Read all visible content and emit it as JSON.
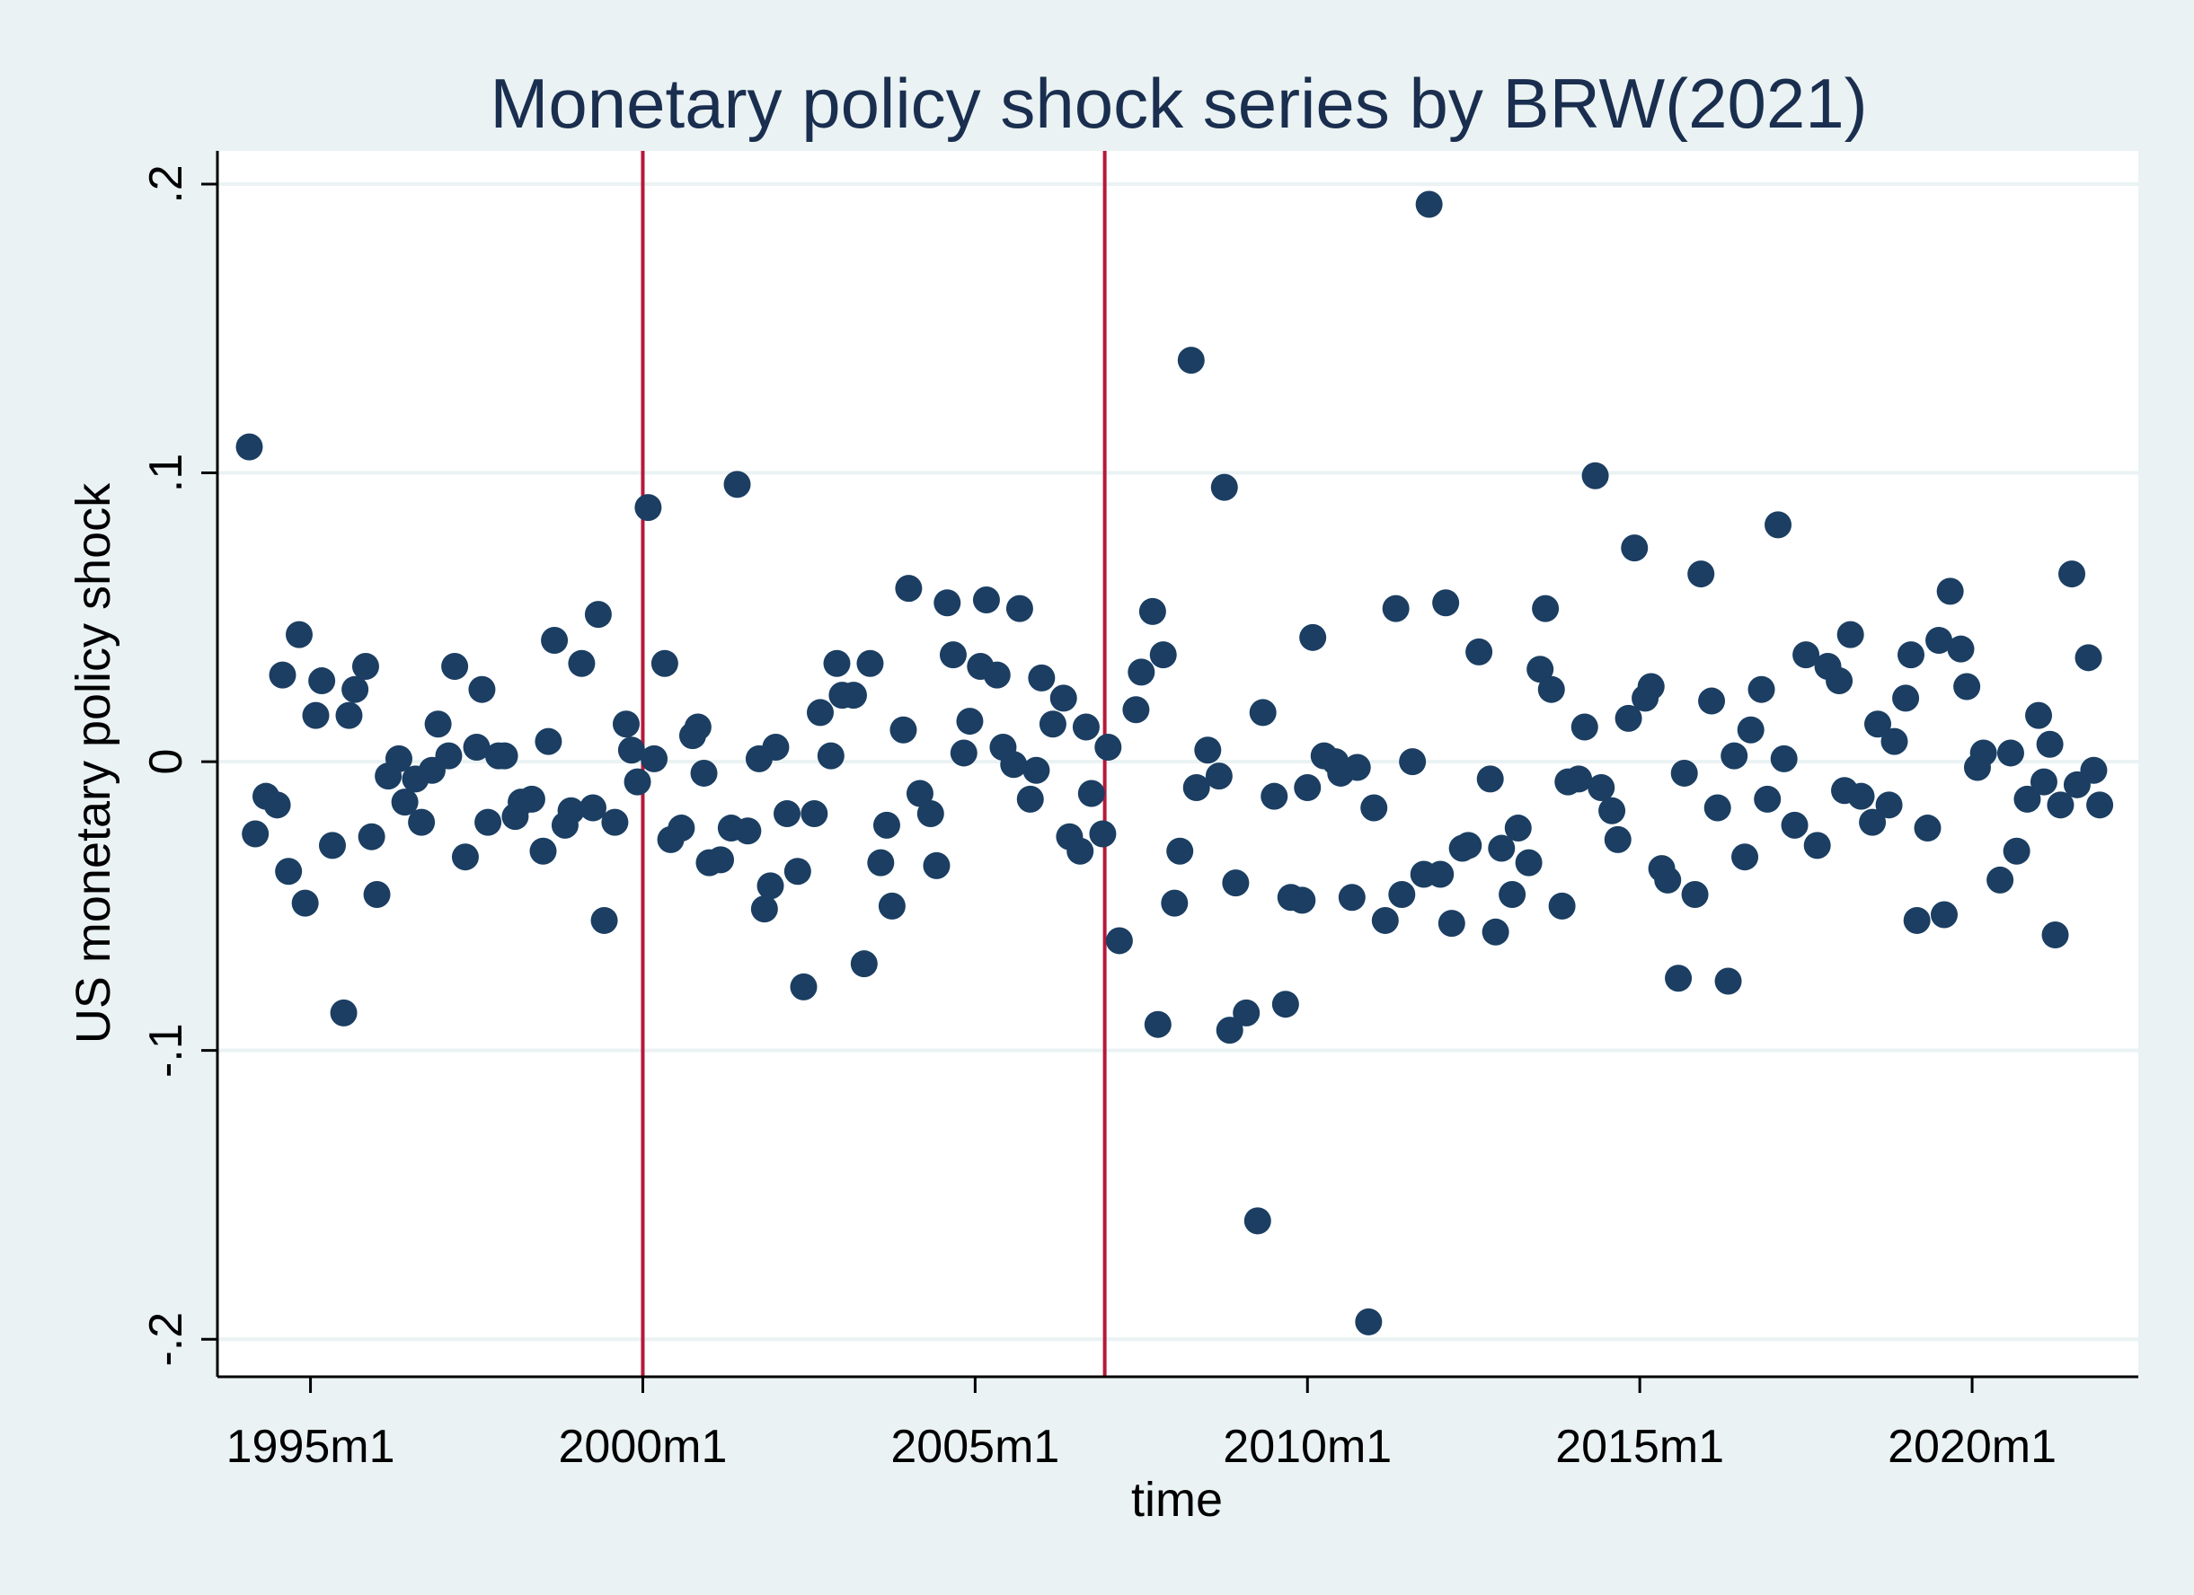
{
  "chart_data": {
    "type": "scatter",
    "title": "Monetary policy shock series by BRW(2021)",
    "xlabel": "time",
    "ylabel": "US monetary policy shock",
    "x_ticks": [
      {
        "value": 1995.0,
        "label": "1995m1"
      },
      {
        "value": 2000.0,
        "label": "2000m1"
      },
      {
        "value": 2005.0,
        "label": "2005m1"
      },
      {
        "value": 2010.0,
        "label": "2010m1"
      },
      {
        "value": 2015.0,
        "label": "2015m1"
      },
      {
        "value": 2020.0,
        "label": "2020m1"
      }
    ],
    "y_ticks": [
      {
        "value": 0.2,
        "label": ".2"
      },
      {
        "value": 0.1,
        "label": ".1"
      },
      {
        "value": 0.0,
        "label": "0"
      },
      {
        "value": -0.1,
        "label": "-.1"
      },
      {
        "value": -0.2,
        "label": "-.2"
      }
    ],
    "xlim": [
      1993.6,
      2022.5
    ],
    "ylim": [
      -0.213,
      0.2115
    ],
    "grid": "horizontal",
    "reference_lines_x": [
      2000.0,
      2006.95
    ],
    "colors": {
      "points": "#1b3e62",
      "reference_lines": "#b5193a",
      "title": "#1a2e4f",
      "background": "#eaf2f3",
      "plot_background": "#ffffff"
    },
    "points": [
      [
        1994.08,
        0.109
      ],
      [
        1994.17,
        -0.025
      ],
      [
        1994.33,
        -0.012
      ],
      [
        1994.5,
        -0.015
      ],
      [
        1994.58,
        0.03
      ],
      [
        1994.67,
        -0.038
      ],
      [
        1994.83,
        0.044
      ],
      [
        1994.92,
        -0.049
      ],
      [
        1995.08,
        0.016
      ],
      [
        1995.17,
        0.028
      ],
      [
        1995.33,
        -0.029
      ],
      [
        1995.5,
        -0.087
      ],
      [
        1995.58,
        0.016
      ],
      [
        1995.67,
        0.025
      ],
      [
        1995.83,
        0.033
      ],
      [
        1995.92,
        -0.026
      ],
      [
        1996.0,
        -0.046
      ],
      [
        1996.17,
        -0.005
      ],
      [
        1996.33,
        0.001
      ],
      [
        1996.42,
        -0.014
      ],
      [
        1996.58,
        -0.006
      ],
      [
        1996.67,
        -0.021
      ],
      [
        1996.83,
        -0.003
      ],
      [
        1996.92,
        0.013
      ],
      [
        1997.08,
        0.002
      ],
      [
        1997.17,
        0.033
      ],
      [
        1997.33,
        -0.033
      ],
      [
        1997.5,
        0.005
      ],
      [
        1997.58,
        0.025
      ],
      [
        1997.67,
        -0.021
      ],
      [
        1997.83,
        0.002
      ],
      [
        1997.92,
        0.002
      ],
      [
        1998.08,
        -0.019
      ],
      [
        1998.17,
        -0.014
      ],
      [
        1998.33,
        -0.013
      ],
      [
        1998.5,
        -0.031
      ],
      [
        1998.58,
        0.007
      ],
      [
        1998.67,
        0.042
      ],
      [
        1998.83,
        -0.022
      ],
      [
        1998.92,
        -0.017
      ],
      [
        1999.08,
        0.034
      ],
      [
        1999.25,
        -0.016
      ],
      [
        1999.33,
        0.051
      ],
      [
        1999.42,
        -0.055
      ],
      [
        1999.58,
        -0.021
      ],
      [
        1999.75,
        0.013
      ],
      [
        1999.83,
        0.004
      ],
      [
        1999.92,
        -0.007
      ],
      [
        2000.08,
        0.088
      ],
      [
        2000.17,
        0.001
      ],
      [
        2000.33,
        0.034
      ],
      [
        2000.42,
        -0.027
      ],
      [
        2000.58,
        -0.023
      ],
      [
        2000.75,
        0.009
      ],
      [
        2000.83,
        0.012
      ],
      [
        2000.92,
        -0.004
      ],
      [
        2001.0,
        -0.035
      ],
      [
        2001.17,
        -0.034
      ],
      [
        2001.33,
        -0.023
      ],
      [
        2001.42,
        0.096
      ],
      [
        2001.58,
        -0.024
      ],
      [
        2001.75,
        0.001
      ],
      [
        2001.83,
        -0.051
      ],
      [
        2001.92,
        -0.043
      ],
      [
        2002.0,
        0.005
      ],
      [
        2002.17,
        -0.018
      ],
      [
        2002.33,
        -0.038
      ],
      [
        2002.42,
        -0.078
      ],
      [
        2002.58,
        -0.018
      ],
      [
        2002.67,
        0.017
      ],
      [
        2002.83,
        0.002
      ],
      [
        2002.92,
        0.034
      ],
      [
        2003.0,
        0.023
      ],
      [
        2003.17,
        0.023
      ],
      [
        2003.33,
        -0.07
      ],
      [
        2003.42,
        0.034
      ],
      [
        2003.58,
        -0.035
      ],
      [
        2003.67,
        -0.022
      ],
      [
        2003.75,
        -0.05
      ],
      [
        2003.92,
        0.011
      ],
      [
        2004.0,
        0.06
      ],
      [
        2004.17,
        -0.011
      ],
      [
        2004.33,
        -0.018
      ],
      [
        2004.42,
        -0.036
      ],
      [
        2004.58,
        0.055
      ],
      [
        2004.67,
        0.037
      ],
      [
        2004.83,
        0.003
      ],
      [
        2004.92,
        0.014
      ],
      [
        2005.08,
        0.033
      ],
      [
        2005.17,
        0.056
      ],
      [
        2005.33,
        0.03
      ],
      [
        2005.42,
        0.005
      ],
      [
        2005.58,
        -0.001
      ],
      [
        2005.67,
        0.053
      ],
      [
        2005.83,
        -0.013
      ],
      [
        2005.92,
        -0.003
      ],
      [
        2006.0,
        0.029
      ],
      [
        2006.17,
        0.013
      ],
      [
        2006.33,
        0.022
      ],
      [
        2006.42,
        -0.026
      ],
      [
        2006.58,
        -0.031
      ],
      [
        2006.67,
        0.012
      ],
      [
        2006.75,
        -0.011
      ],
      [
        2006.92,
        -0.025
      ],
      [
        2007.0,
        0.005
      ],
      [
        2007.17,
        -0.062
      ],
      [
        2007.42,
        0.018
      ],
      [
        2007.5,
        0.031
      ],
      [
        2007.67,
        0.052
      ],
      [
        2007.75,
        -0.091
      ],
      [
        2007.83,
        0.037
      ],
      [
        2008.0,
        -0.049
      ],
      [
        2008.08,
        -0.031
      ],
      [
        2008.25,
        0.139
      ],
      [
        2008.33,
        -0.009
      ],
      [
        2008.5,
        0.004
      ],
      [
        2008.67,
        -0.005
      ],
      [
        2008.75,
        0.095
      ],
      [
        2008.83,
        -0.093
      ],
      [
        2008.92,
        -0.042
      ],
      [
        2009.08,
        -0.087
      ],
      [
        2009.25,
        -0.159
      ],
      [
        2009.33,
        0.017
      ],
      [
        2009.5,
        -0.012
      ],
      [
        2009.67,
        -0.084
      ],
      [
        2009.75,
        -0.047
      ],
      [
        2009.92,
        -0.048
      ],
      [
        2010.0,
        -0.009
      ],
      [
        2010.08,
        0.043
      ],
      [
        2010.25,
        0.002
      ],
      [
        2010.42,
        0.0
      ],
      [
        2010.5,
        -0.004
      ],
      [
        2010.67,
        -0.047
      ],
      [
        2010.75,
        -0.002
      ],
      [
        2010.92,
        -0.194
      ],
      [
        2011.0,
        -0.016
      ],
      [
        2011.17,
        -0.055
      ],
      [
        2011.33,
        0.053
      ],
      [
        2011.42,
        -0.046
      ],
      [
        2011.58,
        -0.0
      ],
      [
        2011.75,
        -0.039
      ],
      [
        2011.83,
        0.193
      ],
      [
        2012.0,
        -0.039
      ],
      [
        2012.08,
        0.055
      ],
      [
        2012.17,
        -0.056
      ],
      [
        2012.33,
        -0.03
      ],
      [
        2012.42,
        -0.029
      ],
      [
        2012.58,
        0.038
      ],
      [
        2012.75,
        -0.006
      ],
      [
        2012.83,
        -0.059
      ],
      [
        2012.92,
        -0.03
      ],
      [
        2013.08,
        -0.046
      ],
      [
        2013.17,
        -0.023
      ],
      [
        2013.33,
        -0.035
      ],
      [
        2013.5,
        0.032
      ],
      [
        2013.58,
        0.053
      ],
      [
        2013.67,
        0.025
      ],
      [
        2013.83,
        -0.05
      ],
      [
        2013.92,
        -0.007
      ],
      [
        2014.08,
        -0.006
      ],
      [
        2014.17,
        0.012
      ],
      [
        2014.33,
        0.099
      ],
      [
        2014.42,
        -0.009
      ],
      [
        2014.58,
        -0.017
      ],
      [
        2014.67,
        -0.027
      ],
      [
        2014.83,
        0.015
      ],
      [
        2014.92,
        0.074
      ],
      [
        2015.08,
        0.022
      ],
      [
        2015.17,
        0.026
      ],
      [
        2015.33,
        -0.037
      ],
      [
        2015.42,
        -0.041
      ],
      [
        2015.58,
        -0.075
      ],
      [
        2015.67,
        -0.004
      ],
      [
        2015.83,
        -0.046
      ],
      [
        2015.92,
        0.065
      ],
      [
        2016.08,
        0.021
      ],
      [
        2016.17,
        -0.016
      ],
      [
        2016.33,
        -0.076
      ],
      [
        2016.42,
        0.002
      ],
      [
        2016.58,
        -0.033
      ],
      [
        2016.67,
        0.011
      ],
      [
        2016.83,
        0.025
      ],
      [
        2016.92,
        -0.013
      ],
      [
        2017.08,
        0.082
      ],
      [
        2017.17,
        0.001
      ],
      [
        2017.33,
        -0.022
      ],
      [
        2017.5,
        0.037
      ],
      [
        2017.67,
        -0.029
      ],
      [
        2017.83,
        0.033
      ],
      [
        2018.0,
        0.028
      ],
      [
        2018.08,
        -0.01
      ],
      [
        2018.17,
        0.044
      ],
      [
        2018.33,
        -0.012
      ],
      [
        2018.5,
        -0.021
      ],
      [
        2018.58,
        0.013
      ],
      [
        2018.75,
        -0.015
      ],
      [
        2018.83,
        0.007
      ],
      [
        2019.0,
        0.022
      ],
      [
        2019.08,
        0.037
      ],
      [
        2019.17,
        -0.055
      ],
      [
        2019.33,
        -0.023
      ],
      [
        2019.5,
        0.042
      ],
      [
        2019.58,
        -0.053
      ],
      [
        2019.67,
        0.059
      ],
      [
        2019.83,
        0.039
      ],
      [
        2019.92,
        0.026
      ],
      [
        2020.08,
        -0.002
      ],
      [
        2020.17,
        0.003
      ],
      [
        2020.42,
        -0.041
      ],
      [
        2020.58,
        0.003
      ],
      [
        2020.67,
        -0.031
      ],
      [
        2020.83,
        -0.013
      ],
      [
        2021.0,
        0.016
      ],
      [
        2021.08,
        -0.007
      ],
      [
        2021.17,
        0.006
      ],
      [
        2021.25,
        -0.06
      ],
      [
        2021.33,
        -0.015
      ],
      [
        2021.5,
        0.065
      ],
      [
        2021.58,
        -0.008
      ],
      [
        2021.75,
        0.036
      ],
      [
        2021.83,
        -0.003
      ],
      [
        2021.92,
        -0.015
      ]
    ]
  }
}
